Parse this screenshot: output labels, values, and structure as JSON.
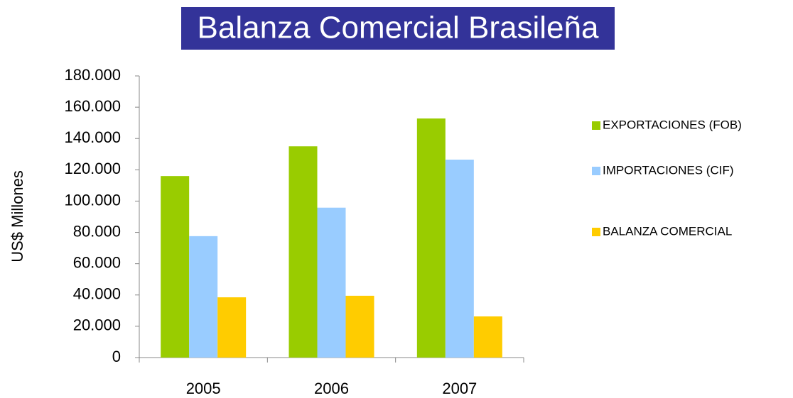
{
  "chart_data": {
    "type": "bar",
    "title": "Balanza Comercial Brasileña",
    "y_label": "US$  Millones",
    "categories": [
      "2005",
      "2006",
      "2007"
    ],
    "series": [
      {
        "name": "EXPORTACIONES (FOB)",
        "color": "#99cc00",
        "values": [
          116000,
          135000,
          152800
        ]
      },
      {
        "name": "IMPORTACIONES (CIF)",
        "color": "#99ccff",
        "values": [
          77600,
          95800,
          126500
        ]
      },
      {
        "name": "BALANZA COMERCIAL",
        "color": "#ffcc00",
        "values": [
          38500,
          39500,
          26300
        ]
      }
    ],
    "ylim": [
      0,
      180000
    ],
    "yticks": [
      0,
      {
        "value": 20000,
        "label": "20.000"
      },
      {
        "value": 40000,
        "label": "40.000"
      },
      {
        "value": 60000,
        "label": "60.000"
      },
      {
        "value": 80000,
        "label": "80.000"
      },
      {
        "value": 100000,
        "label": "100.000"
      },
      {
        "value": 120000,
        "label": "120.000"
      },
      {
        "value": 140000,
        "label": "140.000"
      },
      {
        "value": 160000,
        "label": "160.000"
      },
      {
        "value": 180000,
        "label": "180.000"
      }
    ],
    "legend": "right",
    "grid": false
  }
}
